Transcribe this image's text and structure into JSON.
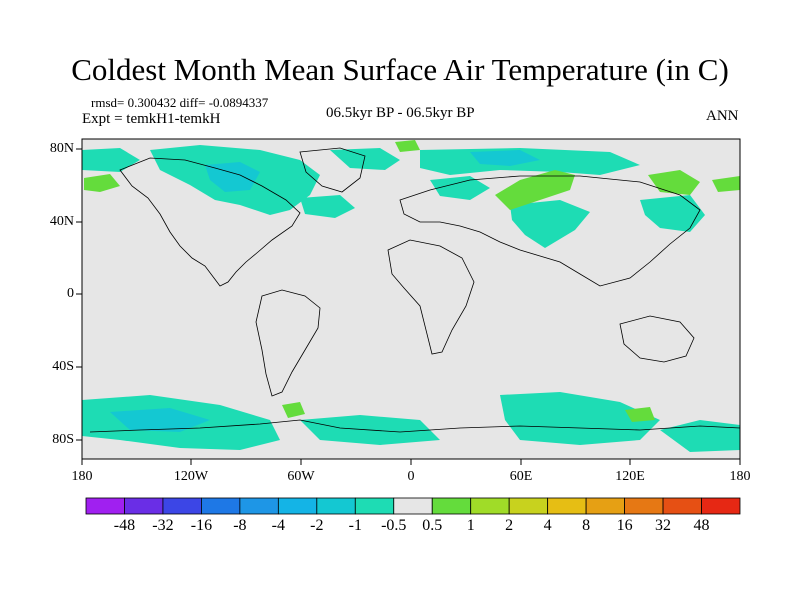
{
  "title": "Coldest Month Mean Surface Air Temperature (in C)",
  "stats": {
    "rmsd_label": "rmsd=",
    "rmsd": "0.300432",
    "diff_label": "diff=",
    "diff": "-0.0894337"
  },
  "experiment": "Expt = temkH1-temkH",
  "period": "06.5kyr BP - 06.5kyr BP",
  "season": "ANN",
  "lat_labels": [
    "80N",
    "40N",
    "0",
    "40S",
    "80S"
  ],
  "lon_labels": [
    "180",
    "120W",
    "60W",
    "0",
    "60E",
    "120E",
    "180"
  ],
  "colors": {
    "land_ocean_bg": "#e6e6e6",
    "minus_half_to_minus_one": "#1edcb4",
    "minus_one_to_minus_two": "#14c8d2",
    "half_to_one": "#64dc3c",
    "coast": "#000000"
  },
  "colorbar": {
    "labels": [
      "-48",
      "-32",
      "-16",
      "-8",
      "-4",
      "-2",
      "-1",
      "-0.5",
      "0.5",
      "1",
      "2",
      "4",
      "8",
      "16",
      "32",
      "48"
    ],
    "colors": [
      "#a020f0",
      "#6a2ee6",
      "#3c46e6",
      "#1e78e6",
      "#1e96e6",
      "#14b4e6",
      "#14c8d2",
      "#1edcb4",
      "#e6e6e6",
      "#64dc3c",
      "#a0dc28",
      "#c8d21e",
      "#e6be14",
      "#e6a014",
      "#e67814",
      "#e65014",
      "#e62814"
    ]
  }
}
